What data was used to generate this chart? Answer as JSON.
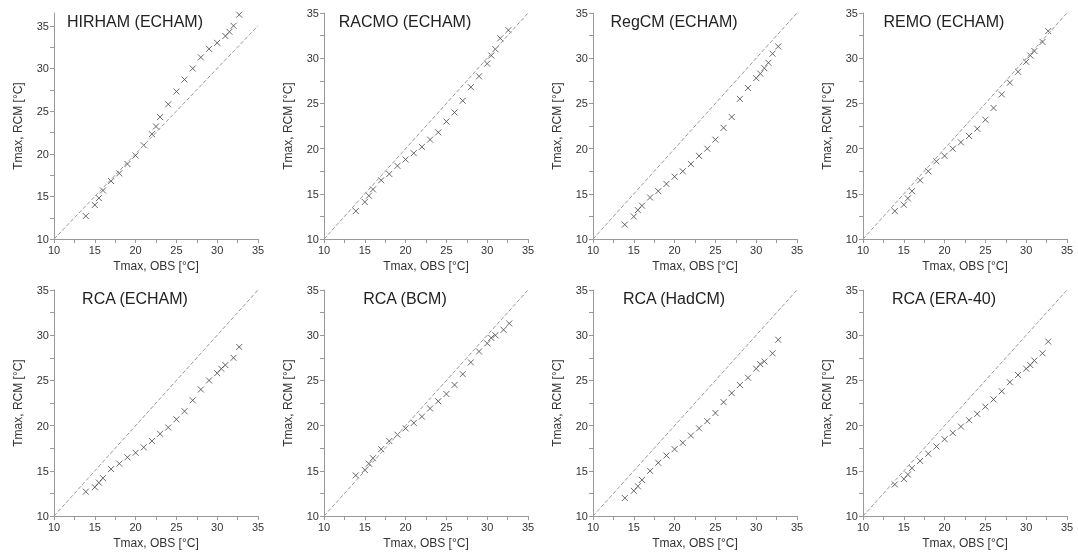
{
  "chart_data": [
    {
      "type": "scatter",
      "title": "HIRHAM (ECHAM)",
      "xlabel": "Tmax, OBS [°C]",
      "ylabel": "Tmax, RCM [°C]",
      "xlim": [
        10,
        35
      ],
      "ylim": [
        10,
        36.5
      ],
      "xticks": [
        10,
        {
          "value": 12.5,
          "label": null
        },
        15,
        {
          "value": 17.5,
          "label": null
        },
        20,
        {
          "value": 22.5,
          "label": null
        },
        25,
        {
          "value": 27.5,
          "label": null
        },
        30,
        {
          "value": 32.5,
          "label": null
        },
        35
      ],
      "yticks": [
        10,
        {
          "value": 12.5,
          "label": null
        },
        15,
        {
          "value": 17.5,
          "label": null
        },
        20,
        {
          "value": 22.5,
          "label": null
        },
        25,
        {
          "value": 27.5,
          "label": null
        },
        30,
        {
          "value": 32.5,
          "label": null
        },
        35
      ],
      "marker": "cross",
      "grid": false,
      "series": [
        {
          "type": "scatter",
          "color": "#444444",
          "x": [
            13.9,
            15,
            15.5,
            16,
            17,
            18,
            19,
            20,
            21,
            22,
            22.5,
            23,
            24,
            25,
            26,
            27,
            28,
            29,
            30,
            31,
            31.5,
            32,
            32.7
          ],
          "values": [
            12.7,
            14,
            14.8,
            15.7,
            16.8,
            17.7,
            18.8,
            19.8,
            21,
            22.3,
            23.2,
            24.3,
            25.8,
            27.3,
            28.7,
            30,
            31.3,
            32.3,
            33,
            33.8,
            34.3,
            35,
            36.3
          ]
        },
        {
          "type": "line",
          "color": "#999999",
          "line_style": "dashed",
          "marker": "none",
          "x": [
            10,
            35
          ],
          "values": [
            10,
            35
          ]
        }
      ]
    },
    {
      "type": "scatter",
      "title": "RACMO (ECHAM)",
      "xlabel": "Tmax, OBS [°C]",
      "ylabel": "Tmax, RCM [°C]",
      "xlim": [
        10,
        35
      ],
      "ylim": [
        10,
        35
      ],
      "xticks": [
        10,
        {
          "value": 12.5,
          "label": null
        },
        15,
        {
          "value": 17.5,
          "label": null
        },
        20,
        {
          "value": 22.5,
          "label": null
        },
        25,
        {
          "value": 27.5,
          "label": null
        },
        30,
        {
          "value": 32.5,
          "label": null
        },
        35
      ],
      "yticks": [
        10,
        {
          "value": 12.5,
          "label": null
        },
        15,
        {
          "value": 17.5,
          "label": null
        },
        20,
        {
          "value": 22.5,
          "label": null
        },
        25,
        {
          "value": 27.5,
          "label": null
        },
        30,
        {
          "value": 32.5,
          "label": null
        },
        35
      ],
      "marker": "cross",
      "grid": false,
      "series": [
        {
          "type": "scatter",
          "color": "#444444",
          "x": [
            13.9,
            15,
            15.5,
            16,
            17,
            18,
            19,
            20,
            21,
            22,
            23,
            24,
            25,
            26,
            27,
            28,
            29,
            30,
            30.5,
            31,
            31.6,
            32.6
          ],
          "values": [
            13.1,
            14.1,
            14.8,
            15.5,
            16.5,
            17.2,
            18.1,
            18.8,
            19.5,
            20.2,
            21,
            21.8,
            23,
            24,
            25.3,
            26.8,
            28,
            29.4,
            30.3,
            31,
            32.2,
            33.1
          ]
        },
        {
          "type": "line",
          "color": "#999999",
          "line_style": "dashed",
          "marker": "none",
          "x": [
            10,
            35
          ],
          "values": [
            10,
            35
          ]
        }
      ]
    },
    {
      "type": "scatter",
      "title": "RegCM (ECHAM)",
      "xlabel": "Tmax, OBS [°C]",
      "ylabel": "Tmax, RCM [°C]",
      "xlim": [
        10,
        35
      ],
      "ylim": [
        10,
        35
      ],
      "xticks": [
        10,
        {
          "value": 12.5,
          "label": null
        },
        15,
        {
          "value": 17.5,
          "label": null
        },
        20,
        {
          "value": 22.5,
          "label": null
        },
        25,
        {
          "value": 27.5,
          "label": null
        },
        30,
        {
          "value": 32.5,
          "label": null
        },
        35
      ],
      "yticks": [
        10,
        {
          "value": 12.5,
          "label": null
        },
        15,
        {
          "value": 17.5,
          "label": null
        },
        20,
        {
          "value": 22.5,
          "label": null
        },
        25,
        {
          "value": 27.5,
          "label": null
        },
        30,
        {
          "value": 32.5,
          "label": null
        },
        35
      ],
      "marker": "cross",
      "grid": false,
      "series": [
        {
          "type": "scatter",
          "color": "#444444",
          "x": [
            13.9,
            15,
            15.5,
            16,
            17,
            18,
            19,
            20,
            21,
            22,
            23,
            24,
            25,
            26,
            27,
            28,
            29,
            30,
            30.5,
            31,
            31.5,
            32,
            32.7
          ],
          "values": [
            11.6,
            12.5,
            13.2,
            13.7,
            14.6,
            15.3,
            16.1,
            16.9,
            17.5,
            18.3,
            19.2,
            20,
            21,
            22.3,
            23.5,
            25.5,
            26.7,
            27.8,
            28.3,
            28.9,
            29.5,
            30.5,
            31.3
          ]
        },
        {
          "type": "line",
          "color": "#999999",
          "line_style": "dashed",
          "marker": "none",
          "x": [
            10,
            35
          ],
          "values": [
            10,
            35
          ]
        }
      ]
    },
    {
      "type": "scatter",
      "title": "REMO (ECHAM)",
      "xlabel": "Tmax, OBS [°C]",
      "ylabel": "Tmax, RCM [°C]",
      "xlim": [
        10,
        35
      ],
      "ylim": [
        10,
        35
      ],
      "xticks": [
        10,
        {
          "value": 12.5,
          "label": null
        },
        15,
        {
          "value": 17.5,
          "label": null
        },
        20,
        {
          "value": 22.5,
          "label": null
        },
        25,
        {
          "value": 27.5,
          "label": null
        },
        30,
        {
          "value": 32.5,
          "label": null
        },
        35
      ],
      "yticks": [
        10,
        {
          "value": 12.5,
          "label": null
        },
        15,
        {
          "value": 17.5,
          "label": null
        },
        20,
        {
          "value": 22.5,
          "label": null
        },
        25,
        {
          "value": 27.5,
          "label": null
        },
        30,
        {
          "value": 32.5,
          "label": null
        },
        35
      ],
      "marker": "cross",
      "grid": false,
      "series": [
        {
          "type": "scatter",
          "color": "#444444",
          "x": [
            13.9,
            15,
            15.5,
            16,
            17,
            18,
            19,
            20,
            21,
            22,
            23,
            24,
            25,
            26,
            27,
            28,
            29,
            30,
            30.5,
            31,
            32,
            32.7
          ],
          "values": [
            13.1,
            13.8,
            14.5,
            15.3,
            16.5,
            17.5,
            18.6,
            19.2,
            20,
            20.7,
            21.4,
            22.2,
            23.2,
            24.5,
            26,
            27.3,
            28.5,
            29.6,
            30.3,
            30.8,
            31.8,
            33
          ]
        },
        {
          "type": "line",
          "color": "#999999",
          "line_style": "dashed",
          "marker": "none",
          "x": [
            10,
            35
          ],
          "values": [
            10,
            35
          ]
        }
      ]
    },
    {
      "type": "scatter",
      "title": "RCA (ECHAM)",
      "xlabel": "Tmax, OBS [°C]",
      "ylabel": "Tmax, RCM [°C]",
      "xlim": [
        10,
        35
      ],
      "ylim": [
        10,
        35
      ],
      "xticks": [
        10,
        {
          "value": 12.5,
          "label": null
        },
        15,
        {
          "value": 17.5,
          "label": null
        },
        20,
        {
          "value": 22.5,
          "label": null
        },
        25,
        {
          "value": 27.5,
          "label": null
        },
        30,
        {
          "value": 32.5,
          "label": null
        },
        35
      ],
      "yticks": [
        10,
        {
          "value": 12.5,
          "label": null
        },
        15,
        {
          "value": 17.5,
          "label": null
        },
        20,
        {
          "value": 22.5,
          "label": null
        },
        25,
        {
          "value": 27.5,
          "label": null
        },
        30,
        {
          "value": 32.5,
          "label": null
        },
        35
      ],
      "marker": "cross",
      "grid": false,
      "series": [
        {
          "type": "scatter",
          "color": "#444444",
          "x": [
            13.9,
            15,
            15.5,
            16,
            17,
            18,
            19,
            20,
            21,
            22,
            23,
            24,
            25,
            26,
            27,
            28,
            29,
            30,
            30.5,
            31,
            32,
            32.7
          ],
          "values": [
            12.7,
            13.2,
            13.7,
            14.2,
            15.2,
            15.8,
            16.5,
            17,
            17.6,
            18.3,
            19.1,
            19.8,
            20.7,
            21.6,
            22.8,
            24,
            25,
            25.8,
            26.3,
            26.7,
            27.5,
            28.7
          ]
        },
        {
          "type": "line",
          "color": "#999999",
          "line_style": "dashed",
          "marker": "none",
          "x": [
            10,
            35
          ],
          "values": [
            10,
            35
          ]
        }
      ]
    },
    {
      "type": "scatter",
      "title": "RCA (BCM)",
      "xlabel": "Tmax, OBS [°C]",
      "ylabel": "Tmax, RCM [°C]",
      "xlim": [
        10,
        35
      ],
      "ylim": [
        10,
        35
      ],
      "xticks": [
        10,
        {
          "value": 12.5,
          "label": null
        },
        15,
        {
          "value": 17.5,
          "label": null
        },
        20,
        {
          "value": 22.5,
          "label": null
        },
        25,
        {
          "value": 27.5,
          "label": null
        },
        30,
        {
          "value": 32.5,
          "label": null
        },
        35
      ],
      "yticks": [
        10,
        {
          "value": 12.5,
          "label": null
        },
        15,
        {
          "value": 17.5,
          "label": null
        },
        20,
        {
          "value": 22.5,
          "label": null
        },
        25,
        {
          "value": 27.5,
          "label": null
        },
        30,
        {
          "value": 32.5,
          "label": null
        },
        35
      ],
      "marker": "cross",
      "grid": false,
      "series": [
        {
          "type": "scatter",
          "color": "#444444",
          "x": [
            13.9,
            15,
            15.5,
            16,
            17,
            18,
            19,
            20,
            21,
            22,
            23,
            24,
            25,
            26,
            27,
            28,
            29,
            30,
            30.5,
            31,
            32,
            32.7
          ],
          "values": [
            14.5,
            15.1,
            15.8,
            16.4,
            17.4,
            18.3,
            19,
            19.7,
            20.3,
            21,
            21.9,
            22.7,
            23.5,
            24.5,
            25.7,
            27,
            28.2,
            29.1,
            29.7,
            30,
            30.6,
            31.3
          ]
        },
        {
          "type": "line",
          "color": "#999999",
          "line_style": "dashed",
          "marker": "none",
          "x": [
            10,
            35
          ],
          "values": [
            10,
            35
          ]
        }
      ]
    },
    {
      "type": "scatter",
      "title": "RCA (HadCM)",
      "xlabel": "Tmax, OBS [°C]",
      "ylabel": "Tmax, RCM [°C]",
      "xlim": [
        10,
        35
      ],
      "ylim": [
        10,
        35
      ],
      "xticks": [
        10,
        {
          "value": 12.5,
          "label": null
        },
        15,
        {
          "value": 17.5,
          "label": null
        },
        20,
        {
          "value": 22.5,
          "label": null
        },
        25,
        {
          "value": 27.5,
          "label": null
        },
        30,
        {
          "value": 32.5,
          "label": null
        },
        35
      ],
      "yticks": [
        10,
        {
          "value": 12.5,
          "label": null
        },
        15,
        {
          "value": 17.5,
          "label": null
        },
        20,
        {
          "value": 22.5,
          "label": null
        },
        25,
        {
          "value": 27.5,
          "label": null
        },
        30,
        {
          "value": 32.5,
          "label": null
        },
        35
      ],
      "marker": "cross",
      "grid": false,
      "series": [
        {
          "type": "scatter",
          "color": "#444444",
          "x": [
            13.9,
            15,
            15.5,
            16,
            17,
            18,
            19,
            20,
            21,
            22,
            23,
            24,
            25,
            26,
            27,
            28,
            29,
            30,
            30.5,
            31,
            32,
            32.7
          ],
          "values": [
            12,
            12.8,
            13.3,
            14,
            15,
            15.9,
            16.7,
            17.4,
            18.1,
            18.9,
            19.7,
            20.5,
            21.4,
            22.6,
            23.6,
            24.5,
            25.3,
            26.3,
            26.8,
            27.1,
            28,
            29.5
          ]
        },
        {
          "type": "line",
          "color": "#999999",
          "line_style": "dashed",
          "marker": "none",
          "x": [
            10,
            35
          ],
          "values": [
            10,
            35
          ]
        }
      ]
    },
    {
      "type": "scatter",
      "title": "RCA (ERA-40)",
      "xlabel": "Tmax, OBS [°C]",
      "ylabel": "Tmax, RCM [°C]",
      "xlim": [
        10,
        35
      ],
      "ylim": [
        10,
        35
      ],
      "xticks": [
        10,
        {
          "value": 12.5,
          "label": null
        },
        15,
        {
          "value": 17.5,
          "label": null
        },
        20,
        {
          "value": 22.5,
          "label": null
        },
        25,
        {
          "value": 27.5,
          "label": null
        },
        30,
        {
          "value": 32.5,
          "label": null
        },
        35
      ],
      "yticks": [
        10,
        {
          "value": 12.5,
          "label": null
        },
        15,
        {
          "value": 17.5,
          "label": null
        },
        20,
        {
          "value": 22.5,
          "label": null
        },
        25,
        {
          "value": 27.5,
          "label": null
        },
        30,
        {
          "value": 32.5,
          "label": null
        },
        35
      ],
      "marker": "cross",
      "grid": false,
      "series": [
        {
          "type": "scatter",
          "color": "#444444",
          "x": [
            13.9,
            15,
            15.5,
            16,
            17,
            18,
            19,
            20,
            21,
            22,
            23,
            24,
            25,
            26,
            27,
            28,
            29,
            30,
            30.5,
            31,
            32,
            32.7
          ],
          "values": [
            13.5,
            14.1,
            14.6,
            15.3,
            16.1,
            16.9,
            17.7,
            18.5,
            19.2,
            19.9,
            20.6,
            21.3,
            22.1,
            22.9,
            23.8,
            24.8,
            25.6,
            26.3,
            26.7,
            27.2,
            28,
            29.3
          ]
        },
        {
          "type": "line",
          "color": "#999999",
          "line_style": "dashed",
          "marker": "none",
          "x": [
            10,
            35
          ],
          "values": [
            10,
            35
          ]
        }
      ]
    }
  ]
}
